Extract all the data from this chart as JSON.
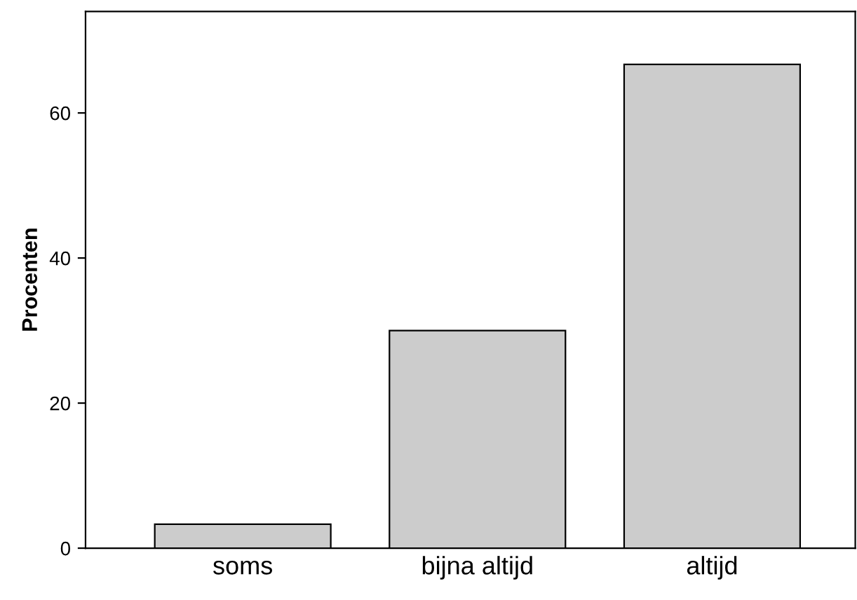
{
  "chart_data": {
    "type": "bar",
    "ylabel": "Procenten",
    "categories": [
      "soms",
      "bijna altijd",
      "altijd"
    ],
    "values": [
      3.3,
      30,
      66.7
    ],
    "color": "#cccccc",
    "ylim": [
      0,
      74
    ],
    "yticks": [
      0,
      20,
      40,
      60
    ],
    "grid": false,
    "legend": false
  }
}
